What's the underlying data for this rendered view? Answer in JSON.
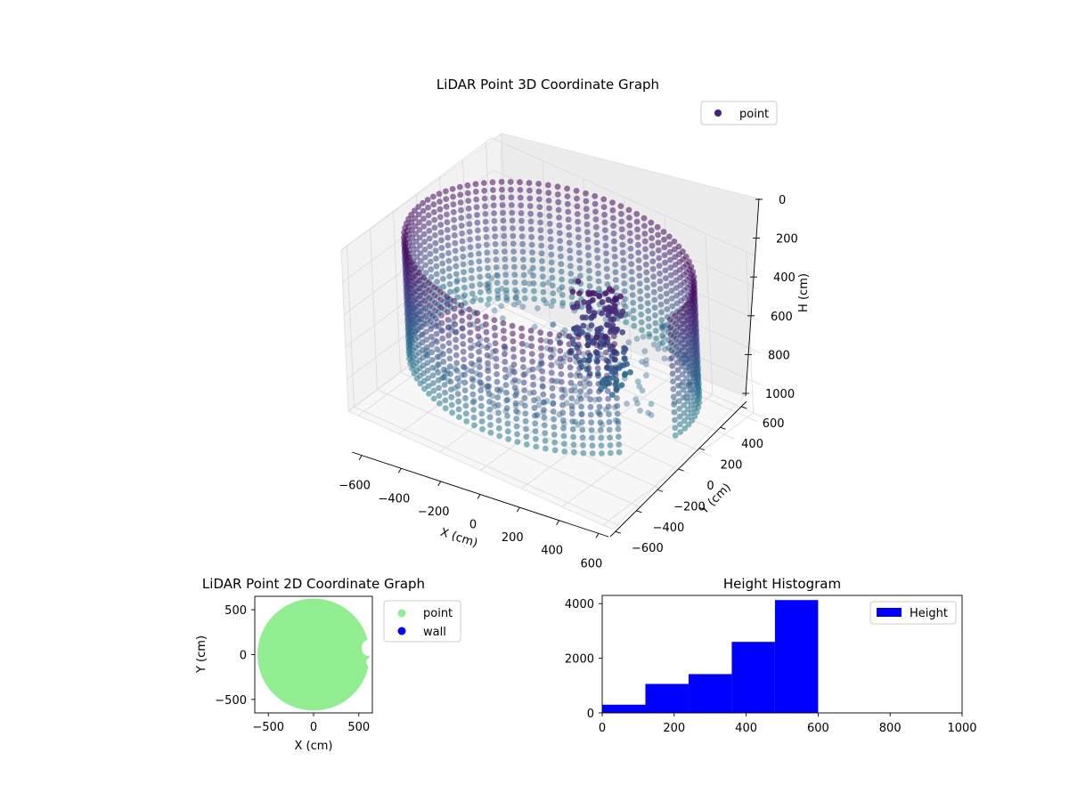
{
  "chart_data": [
    {
      "type": "scatter3d",
      "title": "LiDAR Point 3D Coordinate Graph",
      "xlabel": "X (cm)",
      "ylabel": "Y (cm)",
      "zlabel": "H (cm)",
      "xlim": [
        -650,
        650
      ],
      "ylim": [
        -650,
        650
      ],
      "zlim": [
        1000,
        0
      ],
      "xticks": [
        "−600",
        "−400",
        "−200",
        "0",
        "200",
        "400",
        "600"
      ],
      "yticks": [
        "−600",
        "−400",
        "−200",
        "0",
        "200",
        "400",
        "600"
      ],
      "zticks": [
        "0",
        "200",
        "400",
        "600",
        "800",
        "1000"
      ],
      "legend": [
        "point"
      ],
      "legend_loc": "upper right",
      "grid": true,
      "colormap": "viridis",
      "structure": {
        "wall_radius": 620,
        "wall_top_h": 40,
        "wall_bottom_h": 760,
        "floor_h": 600,
        "obstacle_center": [
          230,
          20
        ],
        "obstacle_h_range": [
          120,
          700
        ]
      }
    },
    {
      "type": "scatter",
      "title": "LiDAR Point 2D Coordinate Graph",
      "xlabel": "X (cm)",
      "ylabel": "Y (cm)",
      "xlim": [
        -650,
        650
      ],
      "ylim": [
        -650,
        650
      ],
      "xticks": [
        "−500",
        "0",
        "500"
      ],
      "yticks": [
        "500",
        "0",
        "−500"
      ],
      "legend": [
        "point",
        "wall"
      ],
      "legend_loc": "outside right",
      "series_colors": {
        "point": "#90ee90",
        "wall": "#0000ff"
      },
      "point_region": {
        "shape": "disc",
        "radius": 620
      }
    },
    {
      "type": "bar",
      "title": "Height Histogram",
      "legend": [
        "Height"
      ],
      "legend_loc": "upper right",
      "color": "#0000ff",
      "xlim": [
        0,
        1000
      ],
      "ylim": [
        0,
        4300
      ],
      "xticks": [
        "0",
        "200",
        "400",
        "600",
        "800",
        "1000"
      ],
      "yticks": [
        "0",
        "2000",
        "4000"
      ],
      "bins": [
        {
          "x0": 0,
          "x1": 120,
          "count": 300
        },
        {
          "x0": 120,
          "x1": 240,
          "count": 1060
        },
        {
          "x0": 240,
          "x1": 360,
          "count": 1420
        },
        {
          "x0": 360,
          "x1": 480,
          "count": 2600
        },
        {
          "x0": 480,
          "x1": 600,
          "count": 4130
        }
      ]
    }
  ]
}
